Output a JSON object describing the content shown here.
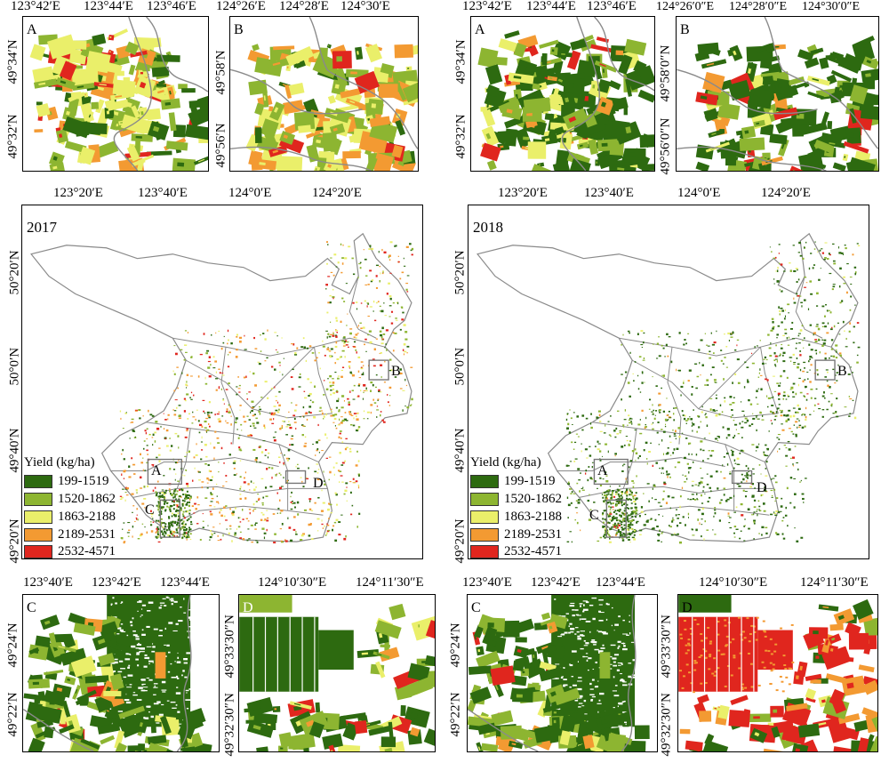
{
  "legend": {
    "title": "Yield (kg/ha)",
    "classes": [
      {
        "label": "199-1519",
        "color": "#2d6a10"
      },
      {
        "label": "1520-1862",
        "color": "#8db531"
      },
      {
        "label": "1863-2188",
        "color": "#eaef6a"
      },
      {
        "label": "2189-2531",
        "color": "#f39a32"
      },
      {
        "label": "2532-4571",
        "color": "#e0261e"
      }
    ]
  },
  "colors": {
    "boundary": "#8a8a8a",
    "frame": "#000000"
  },
  "main_maps": [
    {
      "year": "2017",
      "top_ticks": [
        "123°20′E",
        "123°40′E",
        "124°0′E",
        "124°20′E"
      ],
      "left_ticks": [
        "50°20′N",
        "50°0′N",
        "49°40′N",
        "49°20′N"
      ],
      "box_labels": [
        "A",
        "B",
        "C",
        "D"
      ]
    },
    {
      "year": "2018",
      "top_ticks": [
        "123°20′E",
        "123°40′E",
        "124°0′E",
        "124°20′E"
      ],
      "left_ticks": [
        "50°20′N",
        "50°0′N",
        "49°40′N",
        "49°20′N"
      ],
      "box_labels": [
        "A",
        "B",
        "C",
        "D"
      ]
    }
  ],
  "insets_2017": {
    "A": {
      "letter": "A",
      "top_ticks": [
        "123°42′E",
        "123°44′E",
        "123°46′E"
      ],
      "left_ticks": [
        "49°34′N",
        "49°32′N"
      ]
    },
    "B": {
      "letter": "B",
      "top_ticks": [
        "124°26′E",
        "124°28′E",
        "124°30′E"
      ],
      "left_ticks": [
        "49°58′N",
        "49°56′N"
      ]
    },
    "C": {
      "letter": "C",
      "top_ticks": [
        "123°40′E",
        "123°42′E",
        "123°44′E"
      ],
      "left_ticks": [
        "49°24′N",
        "49°22′N"
      ]
    },
    "D": {
      "letter": "D",
      "top_ticks": [
        "124°10′30″E",
        "124°11′30″E"
      ],
      "left_ticks": [
        "49°33′30″N",
        "49°32′30″N"
      ]
    }
  },
  "insets_2018": {
    "A": {
      "letter": "A",
      "top_ticks": [
        "123°42′E",
        "123°44′E",
        "123°46′E"
      ],
      "left_ticks": [
        "49°34′N",
        "49°32′N"
      ]
    },
    "B": {
      "letter": "B",
      "top_ticks": [
        "124°26′0″E",
        "124°28′0″E",
        "124°30′0″E"
      ],
      "left_ticks": [
        "49°58′0″N",
        "49°56′0″N"
      ]
    },
    "C": {
      "letter": "C",
      "top_ticks": [
        "123°40′E",
        "123°42′E",
        "123°44′E"
      ],
      "left_ticks": [
        "49°24′N",
        "49°22′N"
      ]
    },
    "D": {
      "letter": "D",
      "top_ticks": [
        "124°10′30″E",
        "124°11′30″E"
      ],
      "left_ticks": [
        "49°33′30″N",
        "49°32′30″N"
      ]
    }
  }
}
